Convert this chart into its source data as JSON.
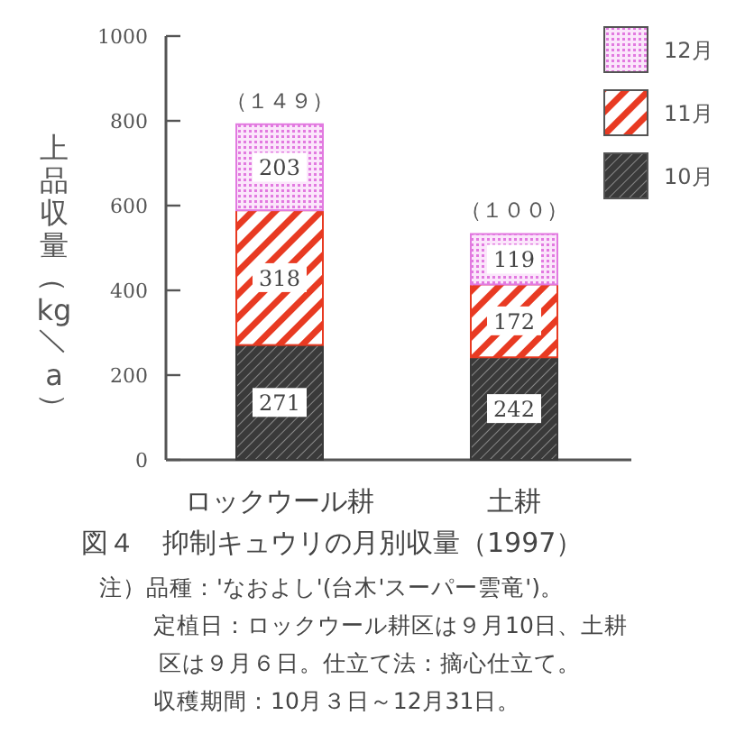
{
  "chart_data": {
    "type": "bar",
    "stacked": true,
    "ylabel": "上品収量（kg／a）",
    "categories": [
      "ロックウール耕",
      "土耕"
    ],
    "series": [
      {
        "name": "10月",
        "color": "#3a3a3a",
        "values": [
          271,
          242
        ]
      },
      {
        "name": "11月",
        "color": "#e83a22",
        "values": [
          318,
          172
        ]
      },
      {
        "name": "12月",
        "color": "#e27ae0",
        "values": [
          203,
          119
        ]
      }
    ],
    "data_labels": true,
    "ylim": [
      0,
      1000
    ],
    "yticks": [
      0,
      200,
      400,
      600,
      800,
      1000
    ],
    "grid": false,
    "legend": "top right",
    "annotations": [
      {
        "text": "（１４９）",
        "x": "ロックウール耕",
        "y": 792
      },
      {
        "text": "（１００）",
        "x": "土耕",
        "y": 533
      },
      "図４　抑制キュウリの月別収量（1997）",
      "注）品種：'なおよし'(台木'スーパー雲竜')。",
      "定植日：ロックウール耕区は９月10日、土耕",
      "区は９月６日。仕立て法：摘心仕立て。",
      "収穫期間：10月３日～12月31日。"
    ]
  }
}
